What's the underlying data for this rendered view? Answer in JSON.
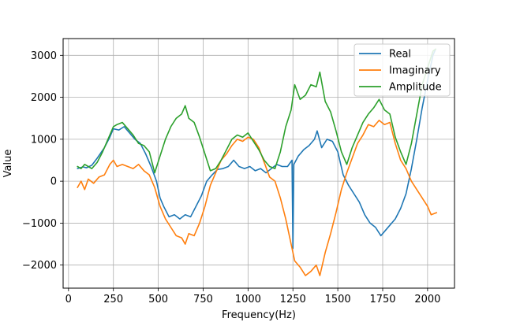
{
  "chart_data": {
    "type": "line",
    "title": "",
    "xlabel": "Frequency(Hz)",
    "ylabel": "Value",
    "xlim": [
      -30,
      2150
    ],
    "ylim": [
      -2550,
      3400
    ],
    "xticks": [
      0,
      250,
      500,
      750,
      1000,
      1250,
      1500,
      1750,
      2000
    ],
    "yticks": [
      -2000,
      -1000,
      0,
      1000,
      2000,
      3000
    ],
    "xtick_labels": [
      "0",
      "250",
      "500",
      "750",
      "1000",
      "1250",
      "1500",
      "1750",
      "2000"
    ],
    "ytick_labels": [
      "−2000",
      "−1000",
      "0",
      "1000",
      "2000",
      "3000"
    ],
    "grid": true,
    "legend_position": "top-right",
    "series": [
      {
        "name": "Real",
        "color": "#1f77b4",
        "points": [
          [
            50,
            300
          ],
          [
            80,
            340
          ],
          [
            100,
            320
          ],
          [
            130,
            380
          ],
          [
            160,
            550
          ],
          [
            200,
            800
          ],
          [
            230,
            1050
          ],
          [
            250,
            1250
          ],
          [
            280,
            1220
          ],
          [
            310,
            1300
          ],
          [
            340,
            1150
          ],
          [
            370,
            1000
          ],
          [
            400,
            900
          ],
          [
            430,
            650
          ],
          [
            460,
            350
          ],
          [
            490,
            0
          ],
          [
            510,
            -400
          ],
          [
            530,
            -600
          ],
          [
            560,
            -850
          ],
          [
            590,
            -800
          ],
          [
            620,
            -900
          ],
          [
            650,
            -800
          ],
          [
            680,
            -850
          ],
          [
            710,
            -600
          ],
          [
            740,
            -350
          ],
          [
            770,
            0
          ],
          [
            800,
            150
          ],
          [
            830,
            280
          ],
          [
            860,
            300
          ],
          [
            890,
            350
          ],
          [
            920,
            500
          ],
          [
            950,
            350
          ],
          [
            980,
            300
          ],
          [
            1010,
            350
          ],
          [
            1040,
            250
          ],
          [
            1070,
            300
          ],
          [
            1100,
            200
          ],
          [
            1130,
            300
          ],
          [
            1160,
            400
          ],
          [
            1190,
            350
          ],
          [
            1220,
            350
          ],
          [
            1245,
            500
          ],
          [
            1250,
            -1600
          ],
          [
            1255,
            400
          ],
          [
            1280,
            600
          ],
          [
            1310,
            750
          ],
          [
            1340,
            850
          ],
          [
            1370,
            1000
          ],
          [
            1385,
            1200
          ],
          [
            1410,
            800
          ],
          [
            1440,
            1000
          ],
          [
            1470,
            950
          ],
          [
            1500,
            700
          ],
          [
            1530,
            150
          ],
          [
            1560,
            -100
          ],
          [
            1590,
            -300
          ],
          [
            1620,
            -500
          ],
          [
            1650,
            -800
          ],
          [
            1680,
            -1000
          ],
          [
            1710,
            -1100
          ],
          [
            1740,
            -1300
          ],
          [
            1760,
            -1200
          ],
          [
            1790,
            -1050
          ],
          [
            1820,
            -900
          ],
          [
            1850,
            -650
          ],
          [
            1880,
            -300
          ],
          [
            1910,
            300
          ],
          [
            1940,
            1000
          ],
          [
            1970,
            1750
          ],
          [
            2000,
            2400
          ],
          [
            2030,
            3000
          ],
          [
            2045,
            3150
          ]
        ]
      },
      {
        "name": "Imaginary",
        "color": "#ff7f0e",
        "points": [
          [
            50,
            -150
          ],
          [
            70,
            0
          ],
          [
            90,
            -200
          ],
          [
            110,
            50
          ],
          [
            140,
            -50
          ],
          [
            170,
            100
          ],
          [
            200,
            150
          ],
          [
            230,
            400
          ],
          [
            250,
            500
          ],
          [
            270,
            350
          ],
          [
            300,
            400
          ],
          [
            330,
            350
          ],
          [
            360,
            300
          ],
          [
            390,
            400
          ],
          [
            420,
            250
          ],
          [
            450,
            150
          ],
          [
            480,
            -150
          ],
          [
            510,
            -600
          ],
          [
            540,
            -900
          ],
          [
            570,
            -1100
          ],
          [
            600,
            -1300
          ],
          [
            630,
            -1350
          ],
          [
            650,
            -1500
          ],
          [
            670,
            -1250
          ],
          [
            700,
            -1300
          ],
          [
            730,
            -1000
          ],
          [
            760,
            -600
          ],
          [
            790,
            -100
          ],
          [
            820,
            200
          ],
          [
            850,
            500
          ],
          [
            880,
            650
          ],
          [
            910,
            850
          ],
          [
            940,
            1000
          ],
          [
            970,
            950
          ],
          [
            1000,
            1050
          ],
          [
            1030,
            1000
          ],
          [
            1060,
            800
          ],
          [
            1090,
            450
          ],
          [
            1120,
            100
          ],
          [
            1150,
            0
          ],
          [
            1180,
            -400
          ],
          [
            1210,
            -900
          ],
          [
            1240,
            -1500
          ],
          [
            1260,
            -1900
          ],
          [
            1290,
            -2050
          ],
          [
            1320,
            -2250
          ],
          [
            1350,
            -2150
          ],
          [
            1380,
            -2000
          ],
          [
            1400,
            -2250
          ],
          [
            1430,
            -1700
          ],
          [
            1460,
            -1250
          ],
          [
            1490,
            -750
          ],
          [
            1520,
            -200
          ],
          [
            1550,
            200
          ],
          [
            1580,
            550
          ],
          [
            1610,
            900
          ],
          [
            1640,
            1100
          ],
          [
            1670,
            1350
          ],
          [
            1700,
            1300
          ],
          [
            1730,
            1450
          ],
          [
            1760,
            1350
          ],
          [
            1790,
            1400
          ],
          [
            1820,
            900
          ],
          [
            1850,
            500
          ],
          [
            1880,
            300
          ],
          [
            1910,
            0
          ],
          [
            1940,
            -200
          ],
          [
            1970,
            -400
          ],
          [
            2000,
            -600
          ],
          [
            2020,
            -800
          ],
          [
            2050,
            -750
          ]
        ]
      },
      {
        "name": "Amplitude",
        "color": "#2ca02c",
        "points": [
          [
            50,
            350
          ],
          [
            70,
            300
          ],
          [
            90,
            400
          ],
          [
            110,
            350
          ],
          [
            130,
            300
          ],
          [
            160,
            450
          ],
          [
            190,
            700
          ],
          [
            220,
            1000
          ],
          [
            250,
            1300
          ],
          [
            270,
            1350
          ],
          [
            300,
            1400
          ],
          [
            330,
            1250
          ],
          [
            360,
            1100
          ],
          [
            390,
            900
          ],
          [
            420,
            850
          ],
          [
            450,
            700
          ],
          [
            480,
            200
          ],
          [
            510,
            600
          ],
          [
            540,
            1000
          ],
          [
            570,
            1300
          ],
          [
            600,
            1500
          ],
          [
            630,
            1600
          ],
          [
            650,
            1800
          ],
          [
            670,
            1500
          ],
          [
            700,
            1400
          ],
          [
            730,
            1050
          ],
          [
            760,
            650
          ],
          [
            790,
            250
          ],
          [
            820,
            300
          ],
          [
            850,
            500
          ],
          [
            880,
            750
          ],
          [
            910,
            1000
          ],
          [
            940,
            1100
          ],
          [
            970,
            1050
          ],
          [
            1000,
            1150
          ],
          [
            1030,
            950
          ],
          [
            1060,
            750
          ],
          [
            1090,
            500
          ],
          [
            1120,
            350
          ],
          [
            1150,
            300
          ],
          [
            1180,
            700
          ],
          [
            1210,
            1300
          ],
          [
            1240,
            1700
          ],
          [
            1260,
            2300
          ],
          [
            1290,
            1950
          ],
          [
            1320,
            2050
          ],
          [
            1350,
            2300
          ],
          [
            1380,
            2250
          ],
          [
            1400,
            2600
          ],
          [
            1430,
            1900
          ],
          [
            1460,
            1650
          ],
          [
            1490,
            1200
          ],
          [
            1520,
            700
          ],
          [
            1550,
            400
          ],
          [
            1580,
            800
          ],
          [
            1610,
            1100
          ],
          [
            1640,
            1400
          ],
          [
            1670,
            1600
          ],
          [
            1700,
            1750
          ],
          [
            1730,
            1950
          ],
          [
            1760,
            1700
          ],
          [
            1790,
            1600
          ],
          [
            1820,
            1050
          ],
          [
            1850,
            700
          ],
          [
            1880,
            400
          ],
          [
            1910,
            900
          ],
          [
            1940,
            1600
          ],
          [
            1970,
            2300
          ],
          [
            2000,
            2700
          ],
          [
            2030,
            3100
          ],
          [
            2045,
            3150
          ]
        ]
      }
    ]
  }
}
